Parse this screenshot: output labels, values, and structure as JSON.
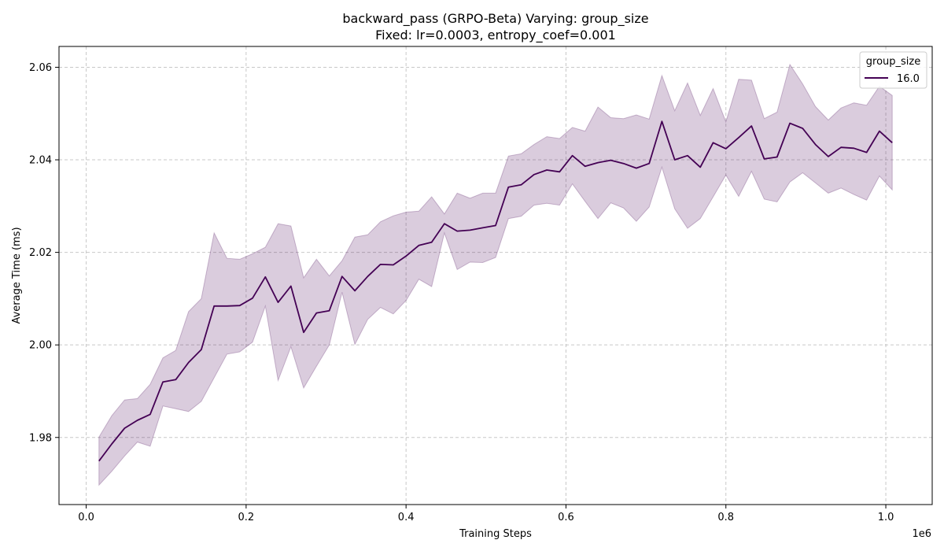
{
  "chart_data": {
    "type": "line",
    "title": "backward_pass (GRPO-Beta) Varying: group_size",
    "subtitle": "Fixed: lr=0.0003, entropy_coef=0.001",
    "xlabel": "Training Steps",
    "ylabel": "Average Time (ms)",
    "x_offset_label": "1e6",
    "xlim": [
      -0.034,
      1.058
    ],
    "ylim": [
      1.9655,
      2.0645
    ],
    "x_ticks": [
      0.0,
      0.2,
      0.4,
      0.6,
      0.8,
      1.0
    ],
    "x_tick_labels": [
      "0.0",
      "0.2",
      "0.4",
      "0.6",
      "0.8",
      "1.0"
    ],
    "y_ticks": [
      1.98,
      2.0,
      2.02,
      2.04,
      2.06
    ],
    "y_tick_labels": [
      "1.98",
      "2.00",
      "2.02",
      "2.04",
      "2.06"
    ],
    "grid": true,
    "legend_title": "group_size",
    "legend_position": "top-right",
    "series": [
      {
        "name": "16.0",
        "color": "#440154",
        "band_color": "#440154",
        "x": [
          0.016,
          0.032,
          0.048,
          0.064,
          0.08,
          0.096,
          0.112,
          0.128,
          0.144,
          0.16,
          0.176,
          0.192,
          0.208,
          0.224,
          0.24,
          0.256,
          0.272,
          0.288,
          0.304,
          0.32,
          0.336,
          0.352,
          0.368,
          0.384,
          0.4,
          0.416,
          0.432,
          0.448,
          0.464,
          0.48,
          0.496,
          0.512,
          0.528,
          0.544,
          0.56,
          0.576,
          0.592,
          0.608,
          0.624,
          0.64,
          0.656,
          0.672,
          0.688,
          0.704,
          0.72,
          0.736,
          0.752,
          0.768,
          0.784,
          0.8,
          0.816,
          0.832,
          0.848,
          0.864,
          0.88,
          0.896,
          0.912,
          0.928,
          0.944,
          0.96,
          0.976,
          0.992,
          1.008
        ],
        "mean": [
          1.9749,
          1.9786,
          1.982,
          1.9837,
          1.985,
          1.992,
          1.9925,
          1.9962,
          1.999,
          2.0084,
          2.0084,
          2.0085,
          2.0101,
          2.0147,
          2.0092,
          2.0127,
          2.0027,
          2.0069,
          2.0074,
          2.0148,
          2.0117,
          2.0148,
          2.0174,
          2.0173,
          2.0192,
          2.0215,
          2.0222,
          2.0262,
          2.0246,
          2.0248,
          2.0253,
          2.0258,
          2.0341,
          2.0346,
          2.0368,
          2.0378,
          2.0374,
          2.0409,
          2.0386,
          2.0394,
          2.0399,
          2.0392,
          2.0382,
          2.0392,
          2.0483,
          2.04,
          2.0409,
          2.0384,
          2.0437,
          2.0424,
          2.0448,
          2.0473,
          2.0402,
          2.0406,
          2.0479,
          2.0468,
          2.0433,
          2.0407,
          2.0427,
          2.0425,
          2.0416,
          2.0462,
          2.0437
        ],
        "upper": [
          1.9801,
          1.9847,
          1.9881,
          1.9884,
          1.9915,
          1.9972,
          1.9988,
          2.0072,
          2.01,
          2.0242,
          2.0187,
          2.0185,
          2.0197,
          2.0211,
          2.0262,
          2.0257,
          2.0145,
          2.0185,
          2.0149,
          2.0182,
          2.0233,
          2.0238,
          2.0266,
          2.0279,
          2.0287,
          2.0289,
          2.032,
          2.0283,
          2.0328,
          2.0317,
          2.0328,
          2.0328,
          2.0408,
          2.0413,
          2.0433,
          2.045,
          2.0446,
          2.047,
          2.0462,
          2.0514,
          2.0491,
          2.0489,
          2.0497,
          2.0488,
          2.0582,
          2.0506,
          2.0566,
          2.0496,
          2.0554,
          2.0482,
          2.0574,
          2.0572,
          2.0489,
          2.0503,
          2.0606,
          2.0564,
          2.0515,
          2.0486,
          2.0512,
          2.0523,
          2.0518,
          2.0559,
          2.0539
        ],
        "lower": [
          1.9697,
          1.9727,
          1.976,
          1.979,
          1.9781,
          1.9868,
          1.9862,
          1.9856,
          1.9878,
          1.9929,
          1.998,
          1.9985,
          2.0006,
          2.0084,
          1.9923,
          1.9996,
          1.9907,
          1.9954,
          2.0,
          2.0114,
          2.0001,
          2.0055,
          2.0081,
          2.0067,
          2.0096,
          2.0142,
          2.0126,
          2.0242,
          2.0163,
          2.0179,
          2.0178,
          2.0189,
          2.0273,
          2.0278,
          2.0302,
          2.0306,
          2.0302,
          2.0348,
          2.031,
          2.0273,
          2.0307,
          2.0296,
          2.0267,
          2.0298,
          2.0384,
          2.0294,
          2.0252,
          2.0273,
          2.032,
          2.0367,
          2.0321,
          2.0375,
          2.0315,
          2.0309,
          2.0352,
          2.0372,
          2.035,
          2.0328,
          2.0339,
          2.0325,
          2.0313,
          2.0365,
          2.0335
        ]
      }
    ]
  }
}
